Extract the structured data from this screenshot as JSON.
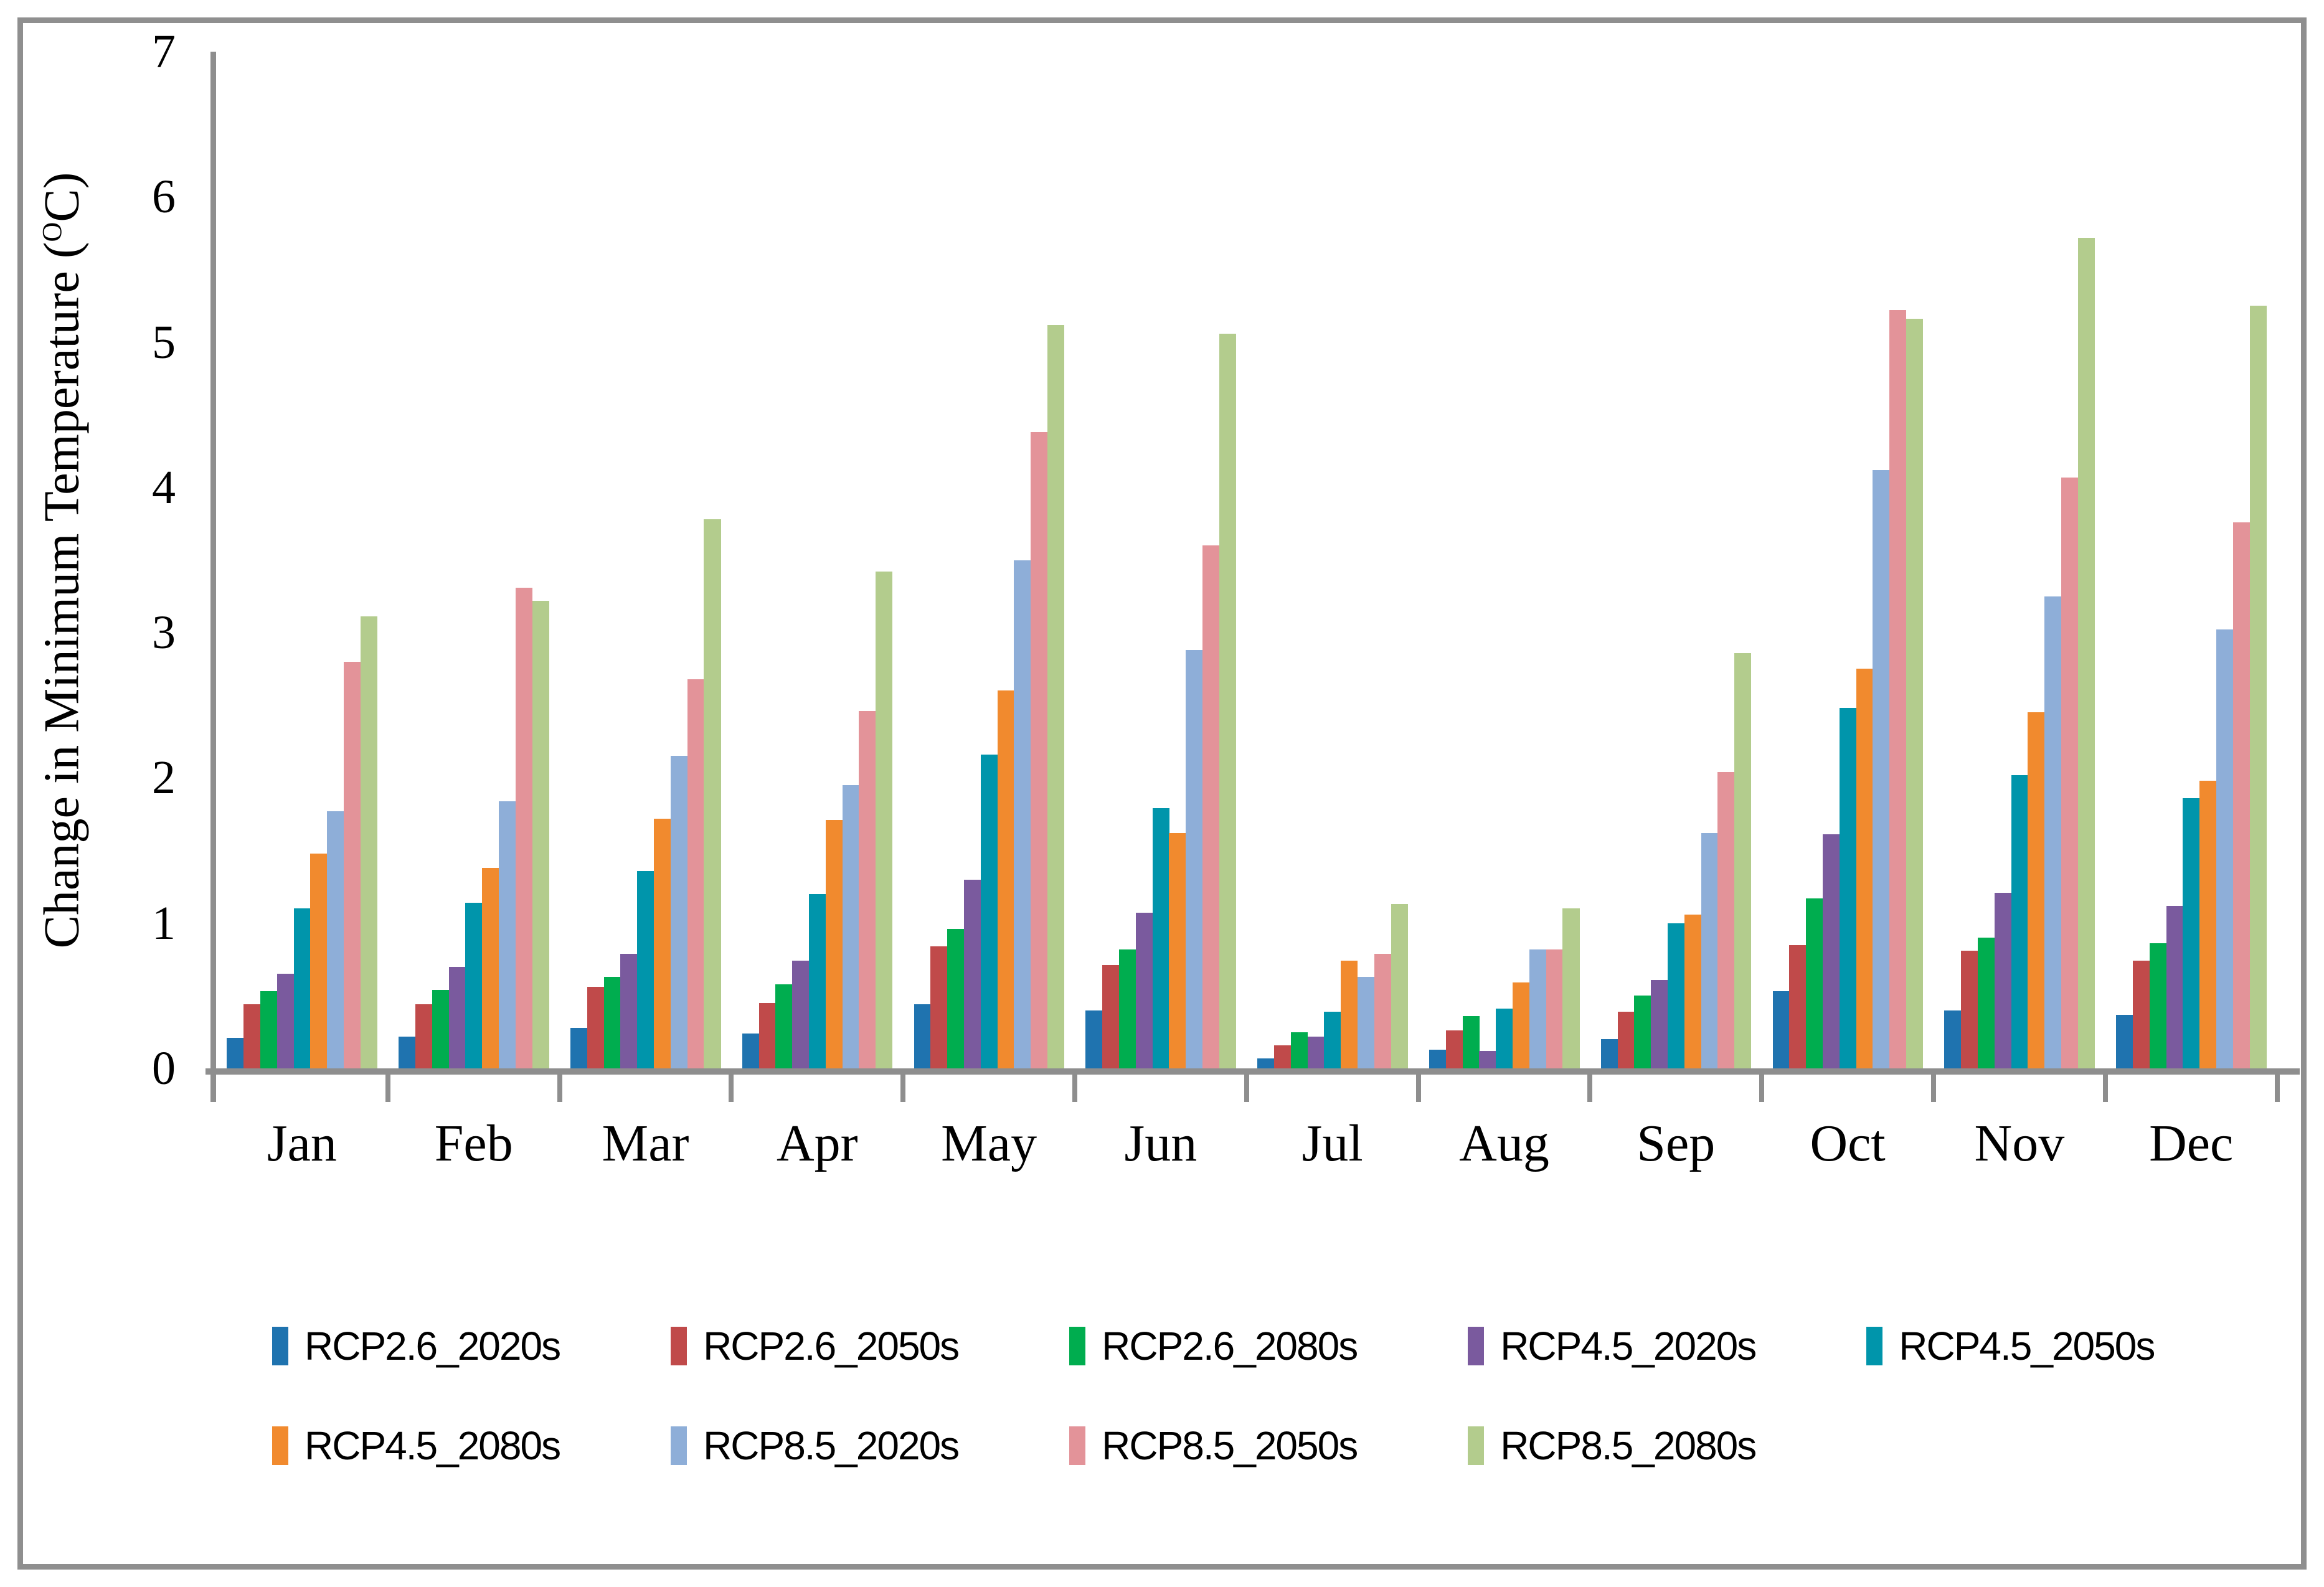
{
  "figure": {
    "border_color": "#8f8f8f",
    "axis_color": "#8e8e8e",
    "background": "#ffffff"
  },
  "chart_data": {
    "type": "bar",
    "title": "",
    "xlabel": "",
    "ylabel": "Change in Minimum Temperature (OC)",
    "ylabel_parts": {
      "main": "Change in Minimum Temperature (",
      "sup": "O",
      "tail": "C)"
    },
    "ylim": [
      0,
      7
    ],
    "yticks": [
      0,
      1,
      2,
      3,
      4,
      5,
      6,
      7
    ],
    "grid": false,
    "legend_position": "bottom",
    "categories": [
      "Jan",
      "Feb",
      "Mar",
      "Apr",
      "May",
      "Jun",
      "Jul",
      "Aug",
      "Sep",
      "Oct",
      "Nov",
      "Dec"
    ],
    "series": [
      {
        "name": "RCP2.6_2020s",
        "color": "#1f73af",
        "values": [
          0.21,
          0.22,
          0.28,
          0.24,
          0.44,
          0.4,
          0.07,
          0.13,
          0.2,
          0.53,
          0.4,
          0.37
        ]
      },
      {
        "name": "RCP2.6_2050s",
        "color": "#c04a4a",
        "values": [
          0.44,
          0.44,
          0.56,
          0.45,
          0.84,
          0.71,
          0.16,
          0.26,
          0.39,
          0.85,
          0.81,
          0.74
        ]
      },
      {
        "name": "RCP2.6_2080s",
        "color": "#00ad4f",
        "values": [
          0.53,
          0.54,
          0.63,
          0.58,
          0.96,
          0.82,
          0.25,
          0.36,
          0.5,
          1.17,
          0.9,
          0.86
        ]
      },
      {
        "name": "RCP4.5_2020s",
        "color": "#7a5a9e",
        "values": [
          0.65,
          0.7,
          0.79,
          0.74,
          1.3,
          1.07,
          0.22,
          0.12,
          0.61,
          1.61,
          1.21,
          1.12
        ]
      },
      {
        "name": "RCP4.5_2050s",
        "color": "#0095ab",
        "values": [
          1.1,
          1.14,
          1.36,
          1.2,
          2.16,
          1.79,
          0.39,
          0.41,
          1.0,
          2.48,
          2.02,
          1.86
        ]
      },
      {
        "name": "RCP4.5_2080s",
        "color": "#f18a2e",
        "values": [
          1.48,
          1.38,
          1.72,
          1.71,
          2.6,
          1.62,
          0.74,
          0.59,
          1.06,
          2.75,
          2.45,
          1.98
        ]
      },
      {
        "name": "RCP8.5_2020s",
        "color": "#8eaed8",
        "values": [
          1.77,
          1.84,
          2.15,
          1.95,
          3.5,
          2.88,
          0.63,
          0.82,
          1.62,
          4.12,
          3.25,
          3.02
        ]
      },
      {
        "name": "RCP8.5_2050s",
        "color": "#e39399",
        "values": [
          2.8,
          3.31,
          2.68,
          2.46,
          4.38,
          3.6,
          0.79,
          0.82,
          2.04,
          5.22,
          4.07,
          3.76
        ]
      },
      {
        "name": "RCP8.5_2080s",
        "color": "#b3cc8d",
        "values": [
          3.11,
          3.22,
          3.78,
          3.42,
          5.12,
          5.06,
          1.13,
          1.1,
          2.86,
          5.16,
          5.72,
          5.25
        ]
      }
    ],
    "legend_rows": [
      [
        "RCP2.6_2020s",
        "RCP2.6_2050s",
        "RCP2.6_2080s",
        "RCP4.5_2020s",
        "RCP4.5_2050s"
      ],
      [
        "RCP4.5_2080s",
        "RCP8.5_2020s",
        "RCP8.5_2050s",
        "RCP8.5_2080s"
      ]
    ]
  }
}
